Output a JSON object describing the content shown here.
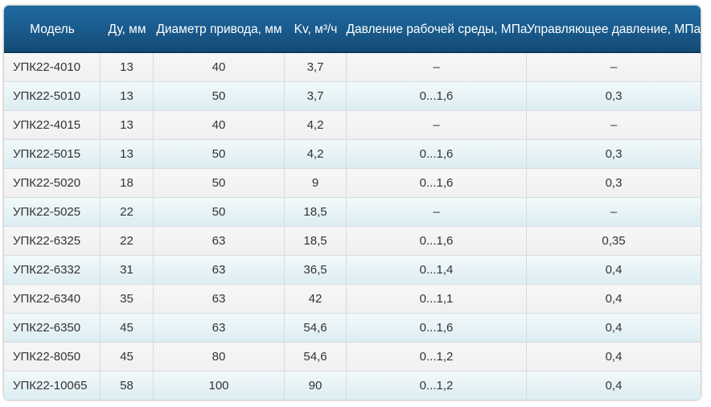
{
  "table": {
    "headers": [
      "Модель",
      "Ду, мм",
      "Диаметр привода, мм",
      "Kv, м³/ч",
      "Давление рабочей среды, МПа",
      "Управляющее давление, МПа"
    ],
    "rows": [
      [
        "УПК22-4010",
        "13",
        "40",
        "3,7",
        "–",
        "–"
      ],
      [
        "УПК22-5010",
        "13",
        "50",
        "3,7",
        "0...1,6",
        "0,3"
      ],
      [
        "УПК22-4015",
        "13",
        "40",
        "4,2",
        "–",
        "–"
      ],
      [
        "УПК22-5015",
        "13",
        "50",
        "4,2",
        "0...1,6",
        "0,3"
      ],
      [
        "УПК22-5020",
        "18",
        "50",
        "9",
        "0...1,6",
        "0,3"
      ],
      [
        "УПК22-5025",
        "22",
        "50",
        "18,5",
        "–",
        "–"
      ],
      [
        "УПК22-6325",
        "22",
        "63",
        "18,5",
        "0...1,6",
        "0,35"
      ],
      [
        "УПК22-6332",
        "31",
        "63",
        "36,5",
        "0...1,4",
        "0,4"
      ],
      [
        "УПК22-6340",
        "35",
        "63",
        "42",
        "0...1,1",
        "0,4"
      ],
      [
        "УПК22-6350",
        "45",
        "63",
        "54,6",
        "0...1,6",
        "0,4"
      ],
      [
        "УПК22-8050",
        "45",
        "80",
        "54,6",
        "0...1,2",
        "0,4"
      ],
      [
        "УПК22-10065",
        "58",
        "100",
        "90",
        "0...1,2",
        "0,4"
      ]
    ]
  },
  "colors": {
    "header_bg": "#1a5d90",
    "header_text": "#ffffff",
    "row_odd": "#f3f3f3",
    "row_even": "#e6f2f6",
    "cell_text": "#333333",
    "grid_line": "#d6dcdf"
  }
}
